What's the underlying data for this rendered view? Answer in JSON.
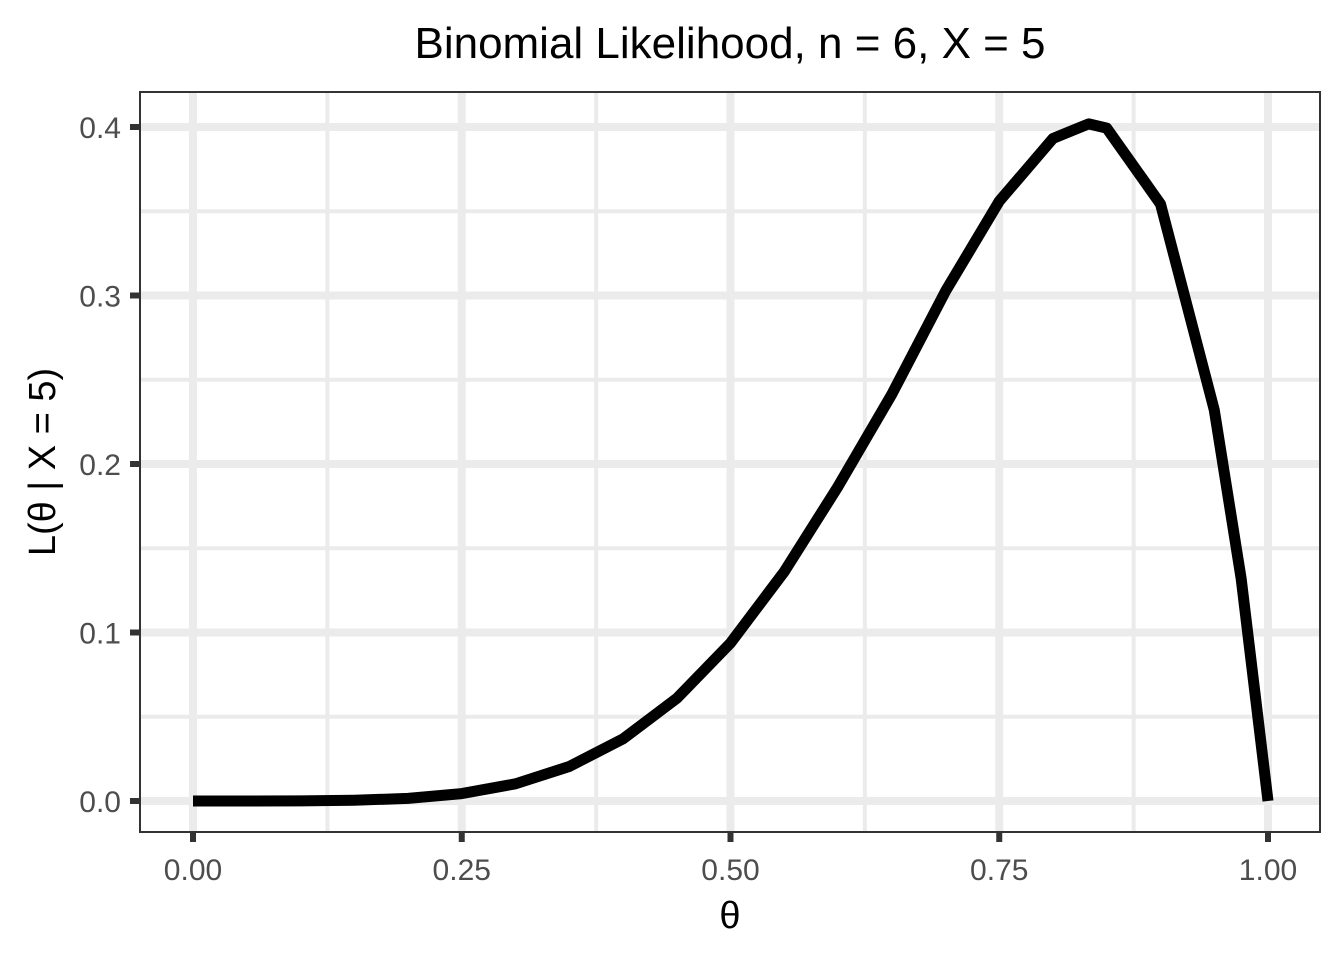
{
  "chart_data": {
    "type": "line",
    "title": "Binomial Likelihood, n = 6, X = 5",
    "xlabel": "θ",
    "ylabel": "L(θ | X = 5)",
    "xlim": [
      0,
      1
    ],
    "ylim": [
      0,
      0.4
    ],
    "x_ticks": [
      "0.00",
      "0.25",
      "0.50",
      "0.75",
      "1.00"
    ],
    "y_ticks": [
      "0.0",
      "0.1",
      "0.2",
      "0.3",
      "0.4"
    ],
    "grid": true,
    "legend": "none",
    "series": [
      {
        "color": "#000000",
        "x": [
          0,
          0.05,
          0.1,
          0.15,
          0.2,
          0.25,
          0.3,
          0.35,
          0.4,
          0.45,
          0.5,
          0.55,
          0.6,
          0.65,
          0.7,
          0.75,
          0.8,
          0.8333,
          0.85,
          0.9,
          0.95,
          0.975,
          1
        ],
        "y": [
          0,
          2e-06,
          5.4e-05,
          0.000456,
          0.001536,
          0.004395,
          0.010206,
          0.020484,
          0.036864,
          0.060886,
          0.09375,
          0.136113,
          0.186624,
          0.241313,
          0.302526,
          0.355957,
          0.393216,
          0.401878,
          0.399324,
          0.354294,
          0.232134,
          0.132106,
          0
        ]
      }
    ]
  },
  "colors": {
    "panel_background": "#ffffff",
    "grid_major": "#ebebeb",
    "grid_minor": "#ebebeb",
    "panel_border": "#333333",
    "line": "#000000"
  }
}
